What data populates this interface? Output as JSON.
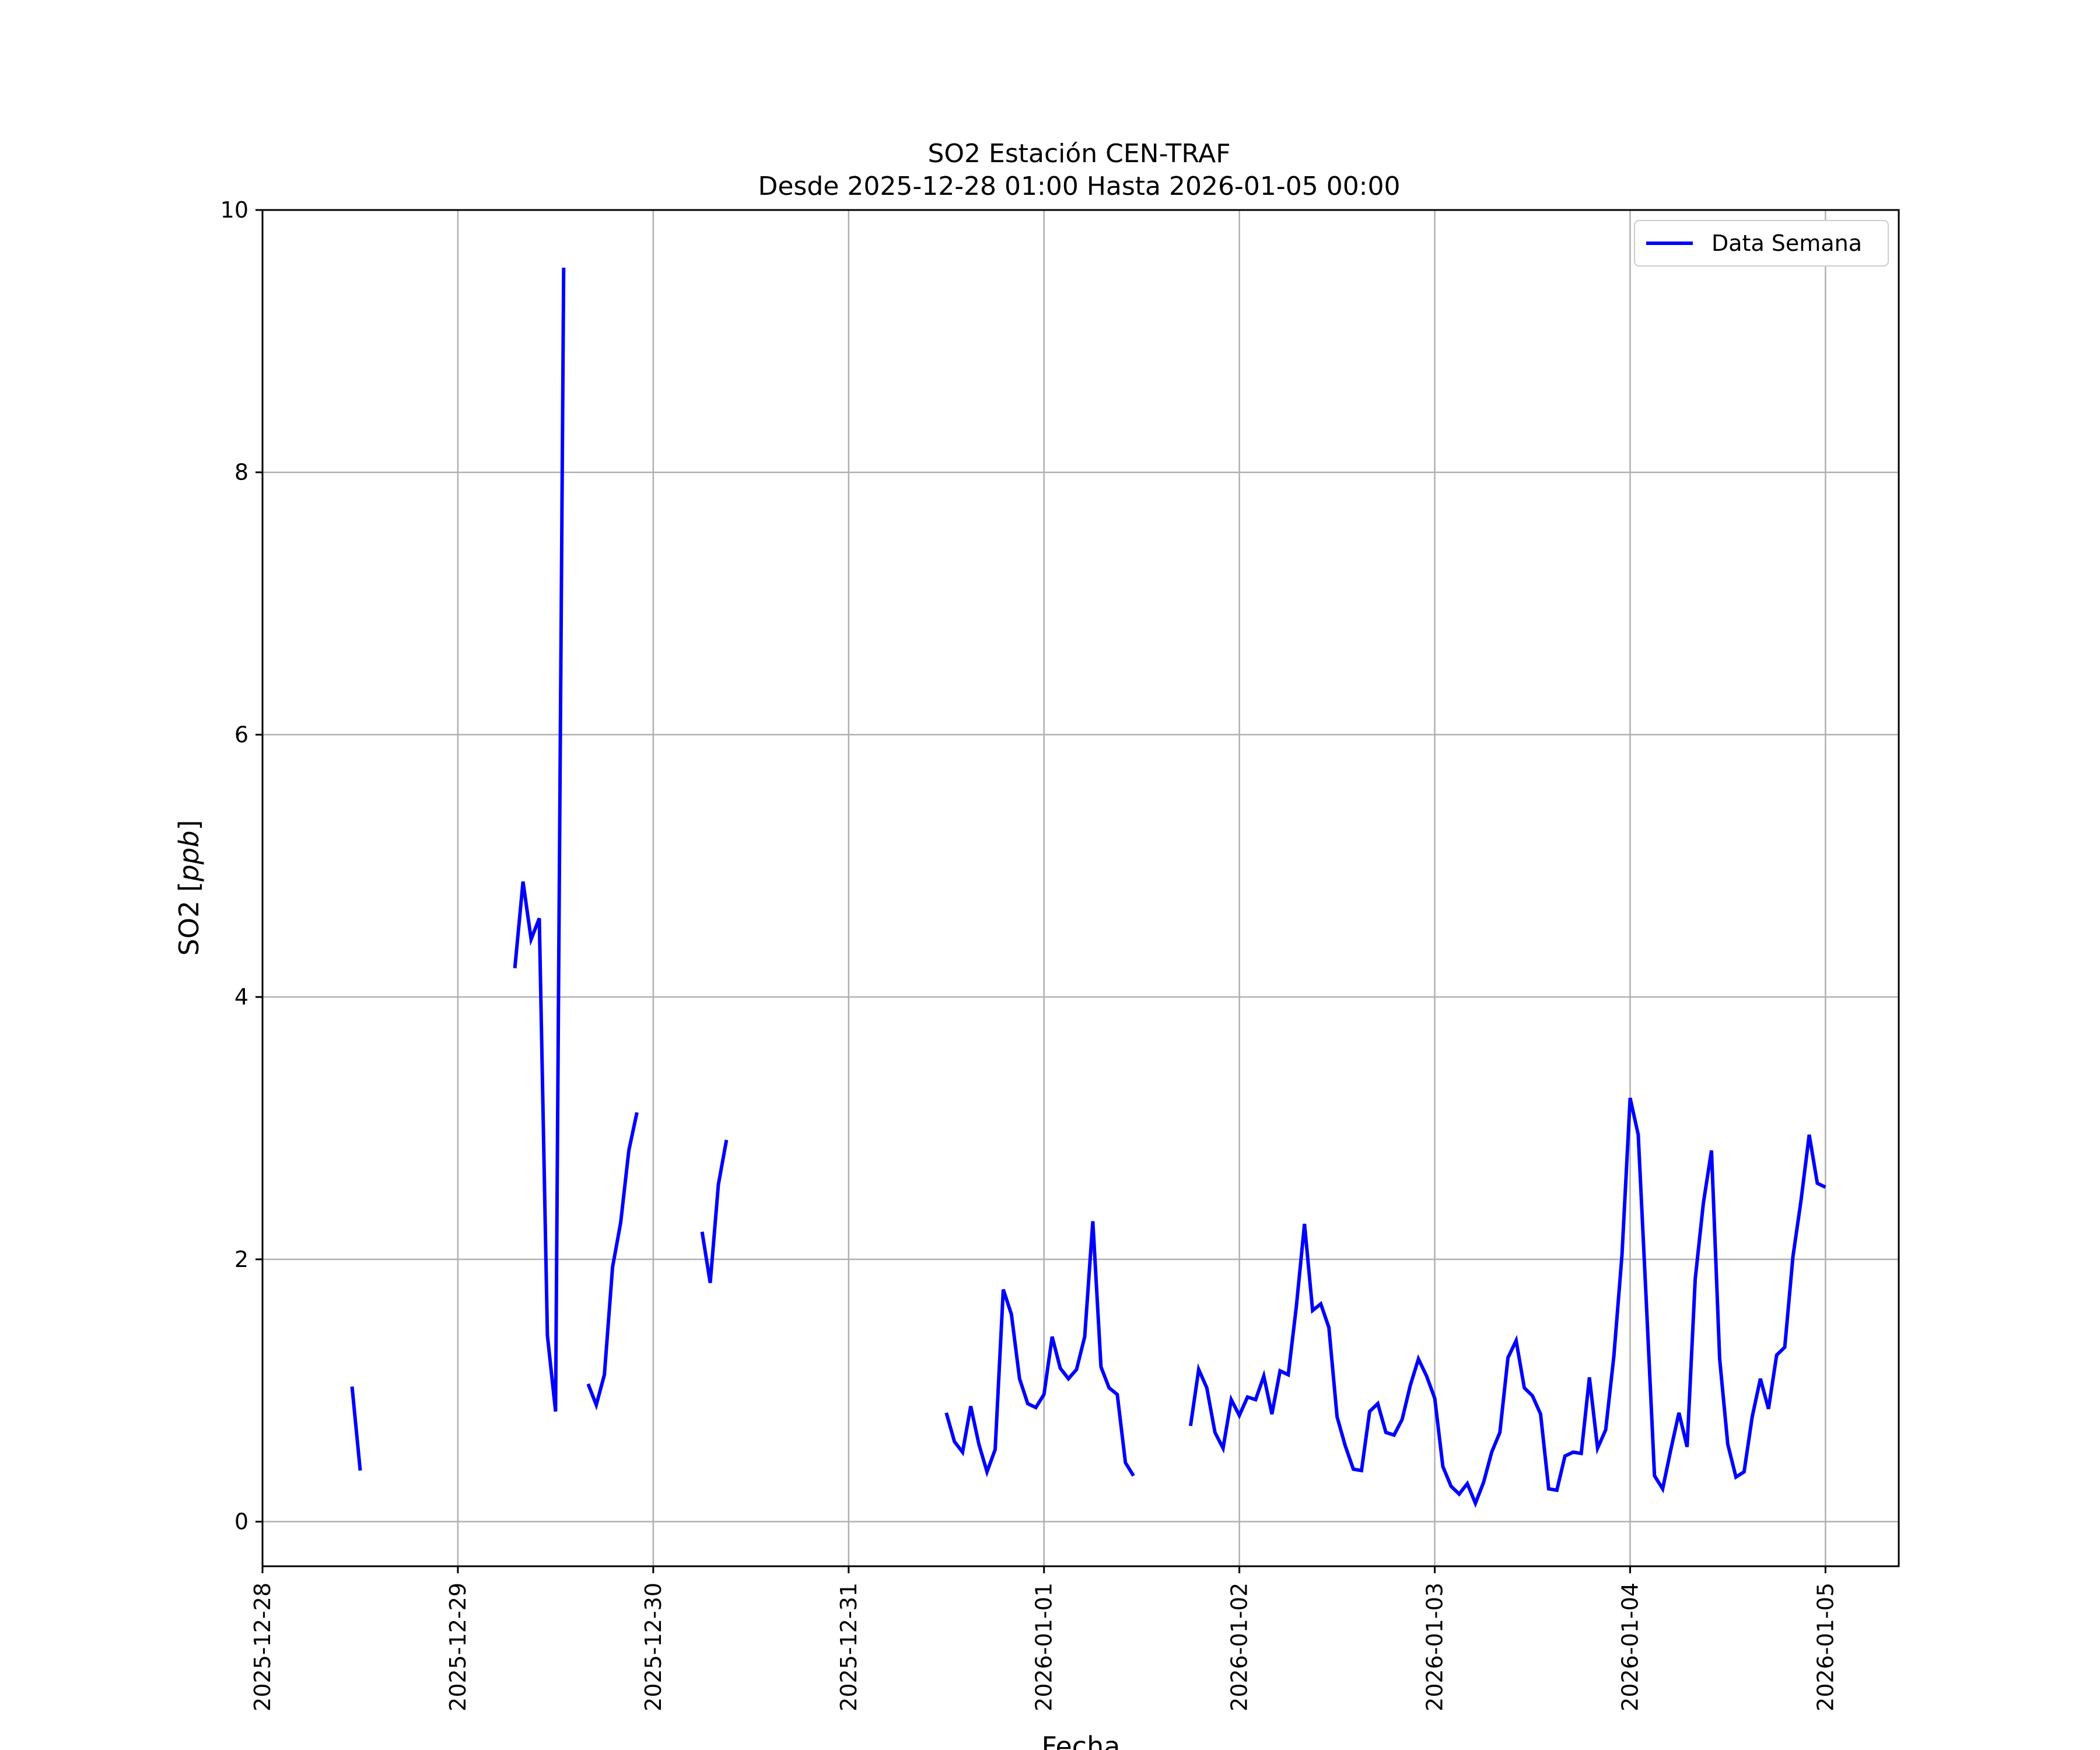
{
  "chart_data": {
    "type": "line",
    "title": "SO2 Estación CEN-TRAF",
    "subtitle": "Desde 2025-12-28 01:00 Hasta 2026-01-05 00:00",
    "xlabel": "Fecha",
    "ylabel": "SO2 [ppb]",
    "ylabel_main": "SO2 [",
    "ylabel_unit": "ppb",
    "ylabel_close": "]",
    "ylim": [
      -0.34,
      10
    ],
    "xlim": [
      "2025-12-28 00:00",
      "2026-01-05 09:00"
    ],
    "grid": true,
    "legend_position": "top-right",
    "line_color": "#0000ff",
    "y_ticks": [
      0,
      2,
      4,
      6,
      8,
      10
    ],
    "x_ticks": [
      "2025-12-28",
      "2025-12-29",
      "2025-12-30",
      "2025-12-31",
      "2026-01-01",
      "2026-01-02",
      "2026-01-03",
      "2026-01-04",
      "2026-01-05"
    ],
    "series": [
      {
        "name": "Data Semana",
        "color": "#0000ff",
        "segments": [
          [
            [
              "2025-12-28 11:00",
              1.03
            ],
            [
              "2025-12-28 12:00",
              0.39
            ]
          ],
          [
            [
              "2025-12-29 07:00",
              4.22
            ],
            [
              "2025-12-29 08:00",
              4.88
            ],
            [
              "2025-12-29 09:00",
              4.44
            ],
            [
              "2025-12-29 10:00",
              4.6
            ],
            [
              "2025-12-29 11:00",
              1.42
            ],
            [
              "2025-12-29 12:00",
              0.84
            ],
            [
              "2025-12-29 13:00",
              9.56
            ]
          ],
          [
            [
              "2025-12-29 16:00",
              1.05
            ],
            [
              "2025-12-29 17:00",
              0.89
            ],
            [
              "2025-12-29 18:00",
              1.12
            ],
            [
              "2025-12-29 19:00",
              1.94
            ],
            [
              "2025-12-29 20:00",
              2.28
            ],
            [
              "2025-12-29 21:00",
              2.83
            ],
            [
              "2025-12-29 22:00",
              3.12
            ]
          ],
          [
            [
              "2025-12-30 06:00",
              2.21
            ],
            [
              "2025-12-30 07:00",
              1.82
            ],
            [
              "2025-12-30 08:00",
              2.57
            ],
            [
              "2025-12-30 09:00",
              2.91
            ]
          ],
          [
            [
              "2025-12-31 12:00",
              0.83
            ],
            [
              "2025-12-31 13:00",
              0.61
            ],
            [
              "2025-12-31 14:00",
              0.53
            ],
            [
              "2025-12-31 15:00",
              0.88
            ],
            [
              "2025-12-31 16:00",
              0.59
            ],
            [
              "2025-12-31 17:00",
              0.38
            ],
            [
              "2025-12-31 18:00",
              0.55
            ],
            [
              "2025-12-31 19:00",
              1.77
            ],
            [
              "2025-12-31 20:00",
              1.58
            ],
            [
              "2025-12-31 21:00",
              1.09
            ],
            [
              "2025-12-31 22:00",
              0.9
            ],
            [
              "2025-12-31 23:00",
              0.87
            ],
            [
              "2026-01-01 00:00",
              0.97
            ],
            [
              "2026-01-01 01:00",
              1.41
            ],
            [
              "2026-01-01 02:00",
              1.17
            ],
            [
              "2026-01-01 03:00",
              1.09
            ],
            [
              "2026-01-01 04:00",
              1.16
            ],
            [
              "2026-01-01 05:00",
              1.41
            ],
            [
              "2026-01-01 06:00",
              2.29
            ],
            [
              "2026-01-01 07:00",
              1.18
            ],
            [
              "2026-01-01 08:00",
              1.02
            ],
            [
              "2026-01-01 09:00",
              0.97
            ],
            [
              "2026-01-01 10:00",
              0.45
            ],
            [
              "2026-01-01 11:00",
              0.35
            ]
          ],
          [
            [
              "2026-01-01 18:00",
              0.73
            ],
            [
              "2026-01-01 19:00",
              1.16
            ],
            [
              "2026-01-01 20:00",
              1.02
            ],
            [
              "2026-01-01 21:00",
              0.68
            ],
            [
              "2026-01-01 22:00",
              0.56
            ],
            [
              "2026-01-01 23:00",
              0.93
            ],
            [
              "2026-01-02 00:00",
              0.81
            ],
            [
              "2026-01-02 01:00",
              0.95
            ],
            [
              "2026-01-02 02:00",
              0.93
            ],
            [
              "2026-01-02 03:00",
              1.11
            ],
            [
              "2026-01-02 04:00",
              0.82
            ],
            [
              "2026-01-02 05:00",
              1.15
            ],
            [
              "2026-01-02 06:00",
              1.12
            ],
            [
              "2026-01-02 07:00",
              1.64
            ],
            [
              "2026-01-02 08:00",
              2.27
            ],
            [
              "2026-01-02 09:00",
              1.61
            ],
            [
              "2026-01-02 10:00",
              1.66
            ],
            [
              "2026-01-02 11:00",
              1.48
            ],
            [
              "2026-01-02 12:00",
              0.8
            ],
            [
              "2026-01-02 13:00",
              0.58
            ],
            [
              "2026-01-02 14:00",
              0.4
            ],
            [
              "2026-01-02 15:00",
              0.39
            ],
            [
              "2026-01-02 16:00",
              0.84
            ],
            [
              "2026-01-02 17:00",
              0.9
            ],
            [
              "2026-01-02 18:00",
              0.68
            ],
            [
              "2026-01-02 19:00",
              0.66
            ],
            [
              "2026-01-02 20:00",
              0.78
            ],
            [
              "2026-01-02 21:00",
              1.04
            ],
            [
              "2026-01-02 22:00",
              1.24
            ],
            [
              "2026-01-02 23:00",
              1.11
            ],
            [
              "2026-01-03 00:00",
              0.94
            ],
            [
              "2026-01-03 01:00",
              0.42
            ],
            [
              "2026-01-03 02:00",
              0.27
            ],
            [
              "2026-01-03 03:00",
              0.21
            ],
            [
              "2026-01-03 04:00",
              0.29
            ],
            [
              "2026-01-03 05:00",
              0.14
            ],
            [
              "2026-01-03 06:00",
              0.3
            ],
            [
              "2026-01-03 07:00",
              0.53
            ],
            [
              "2026-01-03 08:00",
              0.68
            ],
            [
              "2026-01-03 09:00",
              1.25
            ],
            [
              "2026-01-03 10:00",
              1.38
            ],
            [
              "2026-01-03 11:00",
              1.02
            ],
            [
              "2026-01-03 12:00",
              0.96
            ],
            [
              "2026-01-03 13:00",
              0.82
            ],
            [
              "2026-01-03 14:00",
              0.25
            ],
            [
              "2026-01-03 15:00",
              0.24
            ],
            [
              "2026-01-03 16:00",
              0.5
            ],
            [
              "2026-01-03 17:00",
              0.53
            ],
            [
              "2026-01-03 18:00",
              0.52
            ],
            [
              "2026-01-03 19:00",
              1.1
            ],
            [
              "2026-01-03 20:00",
              0.56
            ],
            [
              "2026-01-03 21:00",
              0.7
            ],
            [
              "2026-01-03 22:00",
              1.26
            ],
            [
              "2026-01-03 23:00",
              2.03
            ],
            [
              "2026-01-04 00:00",
              3.23
            ],
            [
              "2026-01-04 01:00",
              2.95
            ],
            [
              "2026-01-04 02:00",
              1.66
            ],
            [
              "2026-01-04 03:00",
              0.35
            ],
            [
              "2026-01-04 04:00",
              0.25
            ],
            [
              "2026-01-04 05:00",
              0.55
            ],
            [
              "2026-01-04 06:00",
              0.83
            ],
            [
              "2026-01-04 07:00",
              0.57
            ],
            [
              "2026-01-04 08:00",
              1.85
            ],
            [
              "2026-01-04 09:00",
              2.43
            ],
            [
              "2026-01-04 10:00",
              2.83
            ],
            [
              "2026-01-04 11:00",
              1.24
            ],
            [
              "2026-01-04 12:00",
              0.59
            ],
            [
              "2026-01-04 13:00",
              0.34
            ],
            [
              "2026-01-04 14:00",
              0.38
            ],
            [
              "2026-01-04 15:00",
              0.8
            ],
            [
              "2026-01-04 16:00",
              1.09
            ],
            [
              "2026-01-04 17:00",
              0.86
            ],
            [
              "2026-01-04 18:00",
              1.27
            ],
            [
              "2026-01-04 19:00",
              1.33
            ],
            [
              "2026-01-04 20:00",
              2.02
            ],
            [
              "2026-01-04 21:00",
              2.45
            ],
            [
              "2026-01-04 22:00",
              2.95
            ],
            [
              "2026-01-04 23:00",
              2.58
            ],
            [
              "2026-01-05 00:00",
              2.55
            ]
          ]
        ]
      }
    ]
  }
}
